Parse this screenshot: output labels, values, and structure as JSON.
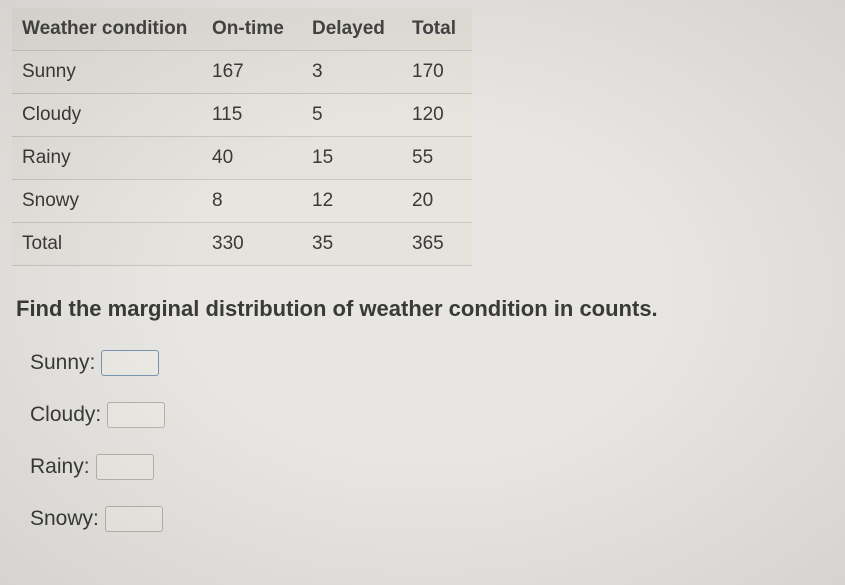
{
  "table": {
    "type": "table",
    "columns": [
      "Weather condition",
      "On-time",
      "Delayed",
      "Total"
    ],
    "rows": [
      [
        "Sunny",
        "167",
        "3",
        "170"
      ],
      [
        "Cloudy",
        "115",
        "5",
        "120"
      ],
      [
        "Rainy",
        "40",
        "15",
        "55"
      ],
      [
        "Snowy",
        "8",
        "12",
        "20"
      ],
      [
        "Total",
        "330",
        "35",
        "365"
      ]
    ],
    "header_bg": "#e3e0da",
    "row_bg": "#e6e3dd",
    "border_color": "#c9c6c0",
    "font_size": 19
  },
  "prompt": "Find the marginal distribution of weather condition in counts.",
  "answers": {
    "sunny": {
      "label": "Sunny:",
      "value": ""
    },
    "cloudy": {
      "label": "Cloudy:",
      "value": ""
    },
    "rainy": {
      "label": "Rainy:",
      "value": ""
    },
    "snowy": {
      "label": "Snowy:",
      "value": ""
    }
  },
  "colors": {
    "page_bg": "#e8e6e2",
    "text": "#3a3a3a",
    "input_border_active": "#7a96b0",
    "input_border_faded": "#b7b3aa"
  }
}
